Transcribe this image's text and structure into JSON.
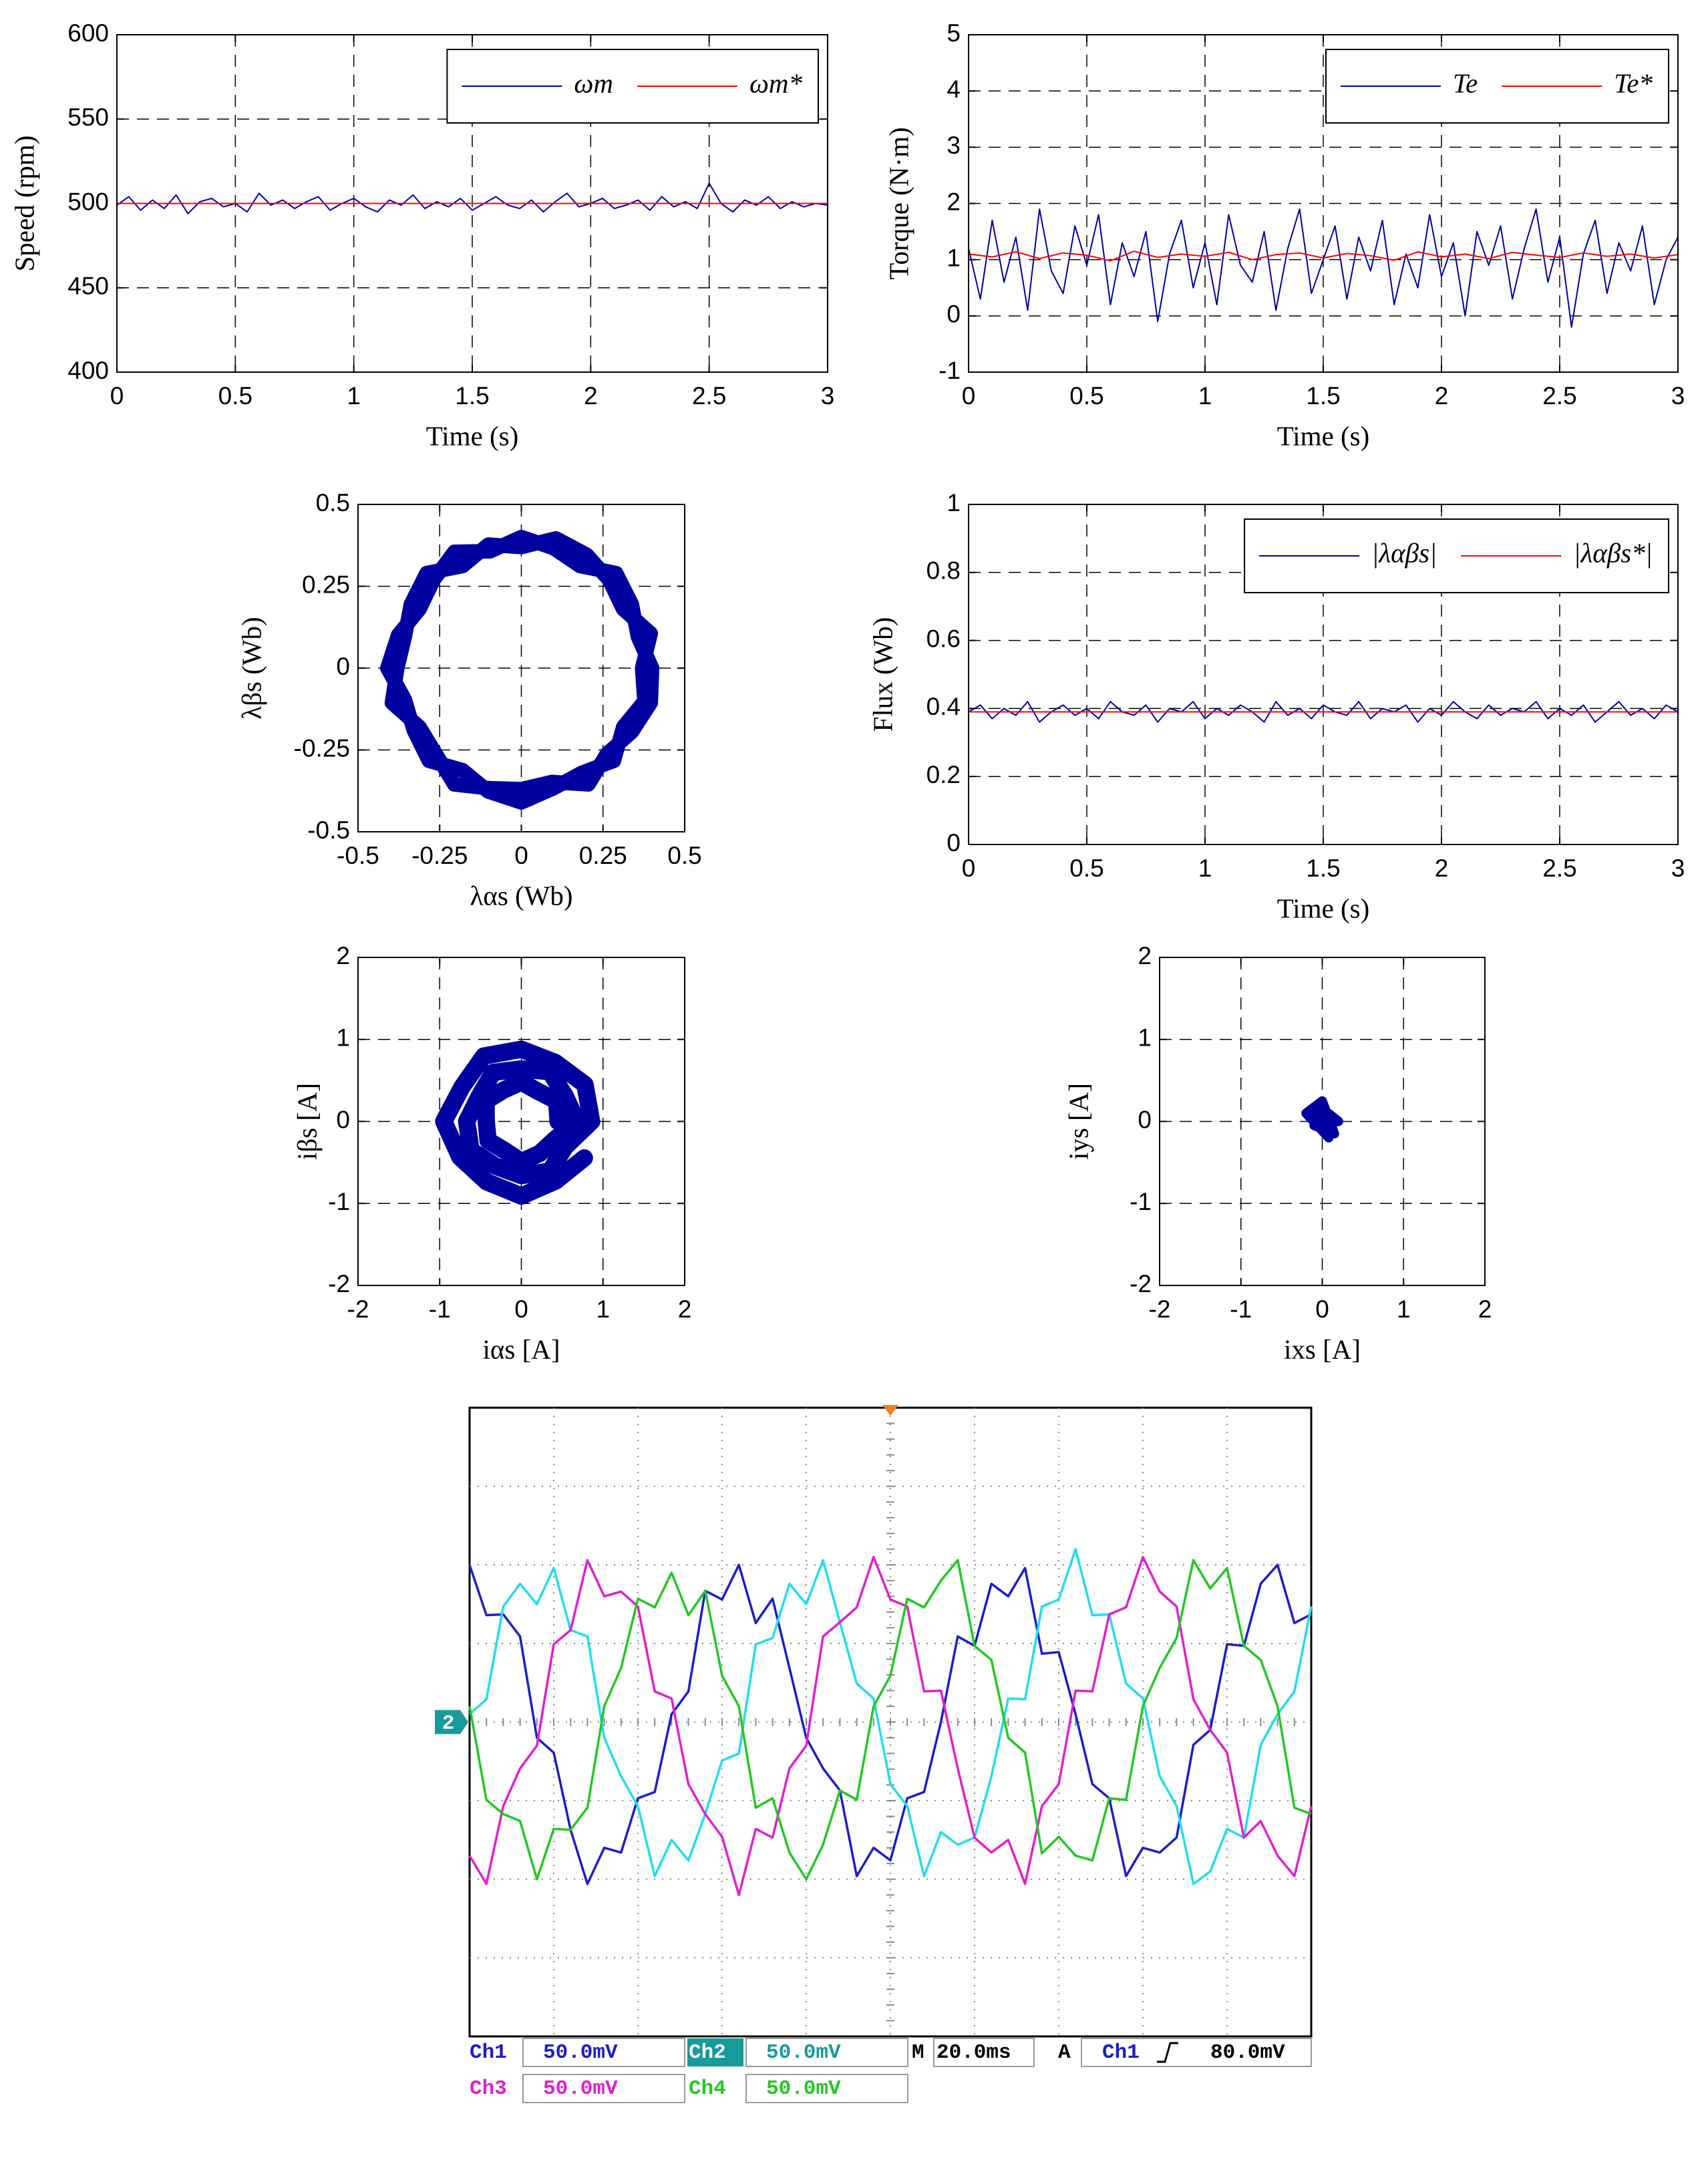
{
  "chart_data": [
    {
      "type": "line",
      "xlabel": "Time (s)",
      "ylabel": "Speed (rpm)",
      "xlim": [
        0,
        3
      ],
      "ylim": [
        400,
        600
      ],
      "xticks": [
        0,
        0.5,
        1,
        1.5,
        2,
        2.5,
        3
      ],
      "yticks": [
        400,
        450,
        500,
        550,
        600
      ],
      "grid": true,
      "legend": "upper right",
      "x": [
        0,
        0.05,
        0.1,
        0.15,
        0.2,
        0.25,
        0.3,
        0.35,
        0.4,
        0.45,
        0.5,
        0.55,
        0.6,
        0.65,
        0.7,
        0.75,
        0.8,
        0.85,
        0.9,
        0.95,
        1,
        1.05,
        1.1,
        1.15,
        1.2,
        1.25,
        1.3,
        1.35,
        1.4,
        1.45,
        1.5,
        1.55,
        1.6,
        1.65,
        1.7,
        1.75,
        1.8,
        1.85,
        1.9,
        1.95,
        2,
        2.05,
        2.1,
        2.15,
        2.2,
        2.25,
        2.3,
        2.35,
        2.4,
        2.45,
        2.5,
        2.55,
        2.6,
        2.65,
        2.7,
        2.75,
        2.8,
        2.85,
        2.9,
        2.95,
        3
      ],
      "series": [
        {
          "name": "ωm",
          "color": "#0000a0",
          "values": [
            499,
            504,
            496,
            502,
            497,
            505,
            494,
            501,
            503,
            498,
            500,
            495,
            506,
            499,
            502,
            497,
            501,
            504,
            496,
            500,
            503,
            498,
            495,
            502,
            499,
            505,
            497,
            501,
            498,
            503,
            496,
            500,
            504,
            499,
            497,
            502,
            495,
            501,
            506,
            498,
            500,
            503,
            497,
            499,
            502,
            496,
            504,
            498,
            501,
            497,
            512,
            500,
            495,
            502,
            499,
            504,
            497,
            501,
            498,
            500,
            499
          ]
        },
        {
          "name": "ωm*",
          "color": "#ff0000",
          "x": [
            0,
            3
          ],
          "values": [
            500,
            500
          ]
        }
      ]
    },
    {
      "type": "line",
      "xlabel": "Time (s)",
      "ylabel": "Torque (N·m)",
      "xlim": [
        0,
        3
      ],
      "ylim": [
        -1,
        5
      ],
      "xticks": [
        0,
        0.5,
        1,
        1.5,
        2,
        2.5,
        3
      ],
      "yticks": [
        -1,
        0,
        1,
        2,
        3,
        4,
        5
      ],
      "grid": true,
      "legend": "upper right",
      "x": [
        0,
        0.05,
        0.1,
        0.15,
        0.2,
        0.25,
        0.3,
        0.35,
        0.4,
        0.45,
        0.5,
        0.55,
        0.6,
        0.65,
        0.7,
        0.75,
        0.8,
        0.85,
        0.9,
        0.95,
        1,
        1.05,
        1.1,
        1.15,
        1.2,
        1.25,
        1.3,
        1.35,
        1.4,
        1.45,
        1.5,
        1.55,
        1.6,
        1.65,
        1.7,
        1.75,
        1.8,
        1.85,
        1.9,
        1.95,
        2,
        2.05,
        2.1,
        2.15,
        2.2,
        2.25,
        2.3,
        2.35,
        2.4,
        2.45,
        2.5,
        2.55,
        2.6,
        2.65,
        2.7,
        2.75,
        2.8,
        2.85,
        2.9,
        2.95,
        3
      ],
      "series": [
        {
          "name": "Te",
          "color": "#0000a0",
          "values": [
            1.2,
            0.3,
            1.7,
            0.6,
            1.4,
            0.1,
            1.9,
            0.8,
            0.4,
            1.6,
            0.9,
            1.8,
            0.2,
            1.3,
            0.7,
            1.5,
            -0.1,
            1.1,
            1.7,
            0.5,
            1.3,
            0.2,
            1.8,
            0.9,
            0.6,
            1.5,
            0.1,
            1.2,
            1.9,
            0.4,
            1.0,
            1.6,
            0.3,
            1.4,
            0.8,
            1.7,
            0.2,
            1.1,
            0.5,
            1.8,
            0.7,
            1.3,
            0.0,
            1.5,
            0.9,
            1.6,
            0.3,
            1.2,
            1.9,
            0.6,
            1.4,
            -0.2,
            1.1,
            1.7,
            0.4,
            1.3,
            0.8,
            1.6,
            0.2,
            1.0,
            1.4
          ]
        },
        {
          "name": "Te*",
          "color": "#ff0000",
          "x": [
            0,
            0.1,
            0.2,
            0.3,
            0.4,
            0.5,
            0.6,
            0.7,
            0.8,
            0.9,
            1,
            1.1,
            1.2,
            1.3,
            1.4,
            1.5,
            1.6,
            1.7,
            1.8,
            1.9,
            2,
            2.1,
            2.2,
            2.3,
            2.4,
            2.5,
            2.6,
            2.7,
            2.8,
            2.9,
            3
          ],
          "values": [
            1.1,
            1.05,
            1.14,
            1.02,
            1.12,
            1.08,
            0.98,
            1.15,
            1.04,
            1.1,
            1.06,
            1.13,
            1.0,
            1.09,
            1.12,
            1.03,
            1.11,
            1.07,
            0.99,
            1.14,
            1.05,
            1.1,
            1.02,
            1.13,
            1.08,
            1.04,
            1.12,
            1.06,
            1.1,
            1.03,
            1.09
          ]
        }
      ]
    },
    {
      "type": "line",
      "xlabel": "λαs (Wb)",
      "ylabel": "λβs (Wb)",
      "xlim": [
        -0.5,
        0.5
      ],
      "ylim": [
        -0.5,
        0.5
      ],
      "xticks": [
        -0.5,
        -0.25,
        0,
        0.25,
        0.5
      ],
      "yticks": [
        -0.5,
        -0.25,
        0,
        0.25,
        0.5
      ],
      "grid": true,
      "series": [
        {
          "color": "#0000a0",
          "x": [
            0.4,
            0.357,
            0.338,
            0.29,
            0.18,
            0.098,
            0,
            -0.096,
            -0.205,
            -0.269,
            -0.312,
            -0.377,
            -0.41,
            -0.357,
            -0.329,
            -0.283,
            -0.18,
            -0.101,
            0,
            0.098,
            0.185,
            0.283,
            0.312,
            0.377,
            0.37,
            0.396,
            0.312,
            0.269,
            0.2,
            0.106,
            0,
            -0.101,
            -0.18,
            -0.29,
            -0.338,
            -0.357,
            -0.38,
            -0.396,
            -0.312,
            -0.262,
            -0.205,
            -0.098,
            0,
            0.093,
            0.205,
            0.262,
            0.338,
            0.396,
            0.4
          ],
          "values": [
            0,
            0.096,
            0.195,
            0.29,
            0.312,
            0.367,
            0.4,
            0.357,
            0.355,
            0.269,
            0.18,
            0.101,
            0,
            -0.096,
            -0.19,
            -0.283,
            -0.312,
            -0.377,
            -0.41,
            -0.367,
            -0.32,
            -0.283,
            -0.18,
            -0.101,
            0,
            0.106,
            0.18,
            0.269,
            0.346,
            0.396,
            0.37,
            0.377,
            0.312,
            0.29,
            0.195,
            0.096,
            0,
            -0.106,
            -0.18,
            -0.262,
            -0.355,
            -0.367,
            -0.37,
            -0.348,
            -0.355,
            -0.262,
            -0.195,
            -0.106,
            0
          ]
        }
      ]
    },
    {
      "type": "line",
      "xlabel": "Time (s)",
      "ylabel": "Flux (Wb)",
      "xlim": [
        0,
        3
      ],
      "ylim": [
        0,
        1
      ],
      "xticks": [
        0,
        0.5,
        1,
        1.5,
        2,
        2.5,
        3
      ],
      "yticks": [
        0,
        0.2,
        0.4,
        0.6,
        0.8,
        1
      ],
      "grid": true,
      "legend": "upper right",
      "x": [
        0,
        0.05,
        0.1,
        0.15,
        0.2,
        0.25,
        0.3,
        0.35,
        0.4,
        0.45,
        0.5,
        0.55,
        0.6,
        0.65,
        0.7,
        0.75,
        0.8,
        0.85,
        0.9,
        0.95,
        1,
        1.05,
        1.1,
        1.15,
        1.2,
        1.25,
        1.3,
        1.35,
        1.4,
        1.45,
        1.5,
        1.55,
        1.6,
        1.65,
        1.7,
        1.75,
        1.8,
        1.85,
        1.9,
        1.95,
        2,
        2.05,
        2.1,
        2.15,
        2.2,
        2.25,
        2.3,
        2.35,
        2.4,
        2.45,
        2.5,
        2.55,
        2.6,
        2.65,
        2.7,
        2.75,
        2.8,
        2.85,
        2.9,
        2.95,
        3
      ],
      "series": [
        {
          "name": "|λαβs|",
          "color": "#0000a0",
          "values": [
            0.39,
            0.41,
            0.37,
            0.4,
            0.38,
            0.42,
            0.36,
            0.39,
            0.41,
            0.38,
            0.4,
            0.37,
            0.42,
            0.39,
            0.38,
            0.41,
            0.36,
            0.4,
            0.39,
            0.42,
            0.37,
            0.4,
            0.38,
            0.41,
            0.39,
            0.36,
            0.42,
            0.38,
            0.4,
            0.37,
            0.41,
            0.39,
            0.38,
            0.42,
            0.37,
            0.4,
            0.39,
            0.41,
            0.36,
            0.4,
            0.38,
            0.42,
            0.39,
            0.37,
            0.41,
            0.38,
            0.4,
            0.39,
            0.42,
            0.37,
            0.4,
            0.38,
            0.41,
            0.36,
            0.39,
            0.42,
            0.38,
            0.4,
            0.37,
            0.41,
            0.39
          ]
        },
        {
          "name": "|λαβs*|",
          "color": "#ff0000",
          "x": [
            0,
            3
          ],
          "values": [
            0.39,
            0.39
          ]
        }
      ]
    },
    {
      "type": "line",
      "xlabel": "iαs [A]",
      "ylabel": "iβs [A]",
      "xlim": [
        -2,
        2
      ],
      "ylim": [
        -2,
        2
      ],
      "xticks": [
        -2,
        -1,
        0,
        1,
        2
      ],
      "yticks": [
        -2,
        -1,
        0,
        1,
        2
      ],
      "grid": true,
      "series": [
        {
          "color": "#0000a0",
          "x": [
            0.45,
            0.433,
            0.21,
            0,
            -0.22,
            -0.433,
            -0.43,
            -0.407,
            -0.205,
            0,
            0.225,
            0.398,
            0.68,
            0.537,
            0.35,
            0,
            -0.345,
            -0.52,
            -0.67,
            -0.615,
            -0.315,
            0,
            0.35,
            0.537,
            0.86,
            0.779,
            0.415,
            0,
            -0.46,
            -0.727,
            -0.95,
            -0.753,
            -0.425,
            0,
            0.42,
            0.771
          ],
          "values": [
            0,
            0.25,
            0.364,
            0.48,
            0.381,
            0.25,
            0,
            -0.235,
            -0.355,
            -0.49,
            -0.39,
            -0.23,
            0,
            0.31,
            0.606,
            0.64,
            0.598,
            0.3,
            0,
            -0.355,
            -0.546,
            -0.66,
            -0.606,
            -0.31,
            0,
            0.45,
            0.719,
            0.88,
            0.797,
            0.42,
            0,
            -0.435,
            -0.736,
            -0.91,
            -0.727,
            -0.445
          ]
        }
      ]
    },
    {
      "type": "line",
      "xlabel": "ixs [A]",
      "ylabel": "iys [A]",
      "xlim": [
        -2,
        2
      ],
      "ylim": [
        -2,
        2
      ],
      "xticks": [
        -2,
        -1,
        0,
        1,
        2
      ],
      "yticks": [
        -2,
        -1,
        0,
        1,
        2
      ],
      "grid": true,
      "series": [
        {
          "color": "#0000a0",
          "x": [
            0.05,
            -0.15,
            0.1,
            -0.05,
            0.2,
            -0.1,
            0.15,
            0.0,
            -0.2,
            0.08,
            -0.05,
            0.12
          ],
          "values": [
            0.1,
            0.05,
            -0.1,
            0.2,
            0.0,
            -0.05,
            -0.15,
            0.25,
            0.1,
            -0.2,
            0.15,
            -0.05
          ]
        }
      ]
    },
    {
      "type": "oscilloscope",
      "xlim": [
        0,
        10
      ],
      "ylim": [
        -4,
        4
      ],
      "marker": "2",
      "x": [
        0,
        0.2,
        0.4,
        0.6,
        0.8,
        1,
        1.2,
        1.4,
        1.6,
        1.8,
        2,
        2.2,
        2.4,
        2.6,
        2.8,
        3,
        3.2,
        3.4,
        3.6,
        3.8,
        4,
        4.2,
        4.4,
        4.6,
        4.8,
        5,
        5.2,
        5.4,
        5.6,
        5.8,
        6,
        6.2,
        6.4,
        6.6,
        6.8,
        7,
        7.2,
        7.4,
        7.6,
        7.8,
        8,
        8.2,
        8.4,
        8.6,
        8.8,
        9,
        9.2,
        9.4,
        9.6,
        9.8,
        10
      ],
      "series": [
        {
          "name": "Ch1",
          "scale": "50.0mV",
          "color": "#1c1cc8",
          "values": [
            2.0,
            1.36,
            1.37,
            1.09,
            -0.2,
            -0.39,
            -1.37,
            -2.06,
            -1.6,
            -1.66,
            -0.97,
            -0.89,
            0.1,
            0.39,
            1.67,
            1.56,
            2.0,
            1.26,
            1.57,
            0.69,
            -0.2,
            -0.59,
            -0.87,
            -1.96,
            -1.6,
            -1.76,
            -0.97,
            -0.89,
            0,
            1.09,
            0.97,
            1.76,
            1.6,
            1.96,
            0.87,
            0.89,
            0.1,
            -0.79,
            -0.97,
            -1.96,
            -1.6,
            -1.66,
            -1.47,
            -0.29,
            -0.1,
            0.99,
            0.97,
            1.76,
            2.0,
            1.26,
            1.37
          ]
        },
        {
          "name": "Ch2",
          "scale": "50.0mV",
          "color": "#22dcef",
          "values": [
            0.1,
            0.29,
            1.47,
            1.76,
            1.5,
            1.96,
            1.17,
            1.09,
            -0.2,
            -0.69,
            -1.07,
            -1.96,
            -1.5,
            -1.76,
            -1.17,
            -0.49,
            -0.4,
            0.99,
            1.07,
            1.76,
            1.5,
            2.06,
            1.27,
            0.49,
            0.3,
            -0.79,
            -1.07,
            -1.96,
            -1.4,
            -1.56,
            -1.47,
            -0.69,
            0.3,
            0.29,
            1.47,
            1.56,
            2.2,
            1.36,
            1.37,
            0.49,
            0.3,
            -0.69,
            -1.07,
            -2.06,
            -1.9,
            -1.36,
            -1.47,
            -0.29,
            0.1,
            0.39,
            1.47
          ]
        },
        {
          "name": "Ch3",
          "scale": "50.0mV",
          "color": "#e020d0",
          "values": [
            -1.7,
            -2.06,
            -1.07,
            -0.59,
            -0.3,
            0.99,
            1.17,
            2.06,
            1.6,
            1.66,
            1.47,
            0.39,
            0.3,
            -0.79,
            -1.17,
            -1.46,
            -2.2,
            -1.36,
            -1.47,
            -0.59,
            -0.3,
            1.09,
            1.27,
            1.46,
            2.1,
            1.56,
            1.47,
            0.39,
            0.4,
            -0.59,
            -1.47,
            -1.66,
            -1.5,
            -2.06,
            -1.07,
            -0.79,
            0.4,
            0.39,
            1.37,
            1.46,
            2.1,
            1.66,
            1.47,
            0.29,
            -0.1,
            -0.39,
            -1.47,
            -1.26,
            -1.7,
            -1.96,
            -1.07
          ]
        },
        {
          "name": "Ch4",
          "scale": "50.0mV",
          "color": "#22c822",
          "values": [
            0.2,
            -0.99,
            -1.17,
            -1.26,
            -2.0,
            -1.36,
            -1.37,
            -1.09,
            0.2,
            0.69,
            1.57,
            1.46,
            1.9,
            1.36,
            1.67,
            0.59,
            0.2,
            -1.09,
            -0.97,
            -1.66,
            -2.0,
            -1.56,
            -0.87,
            -0.99,
            0.2,
            0.59,
            1.57,
            1.46,
            1.8,
            2.06,
            0.97,
            0.79,
            -0.2,
            -0.39,
            -1.67,
            -1.46,
            -1.7,
            -1.76,
            -0.97,
            -0.99,
            0.2,
            0.69,
            1.07,
            2.06,
            1.7,
            1.96,
            0.97,
            0.79,
            0.2,
            -1.09,
            -1.17
          ]
        }
      ],
      "timebase": {
        "label": "M",
        "value": "20.0ms"
      },
      "trigger": {
        "label": "A",
        "source": "Ch1",
        "level": "80.0mV"
      }
    }
  ]
}
